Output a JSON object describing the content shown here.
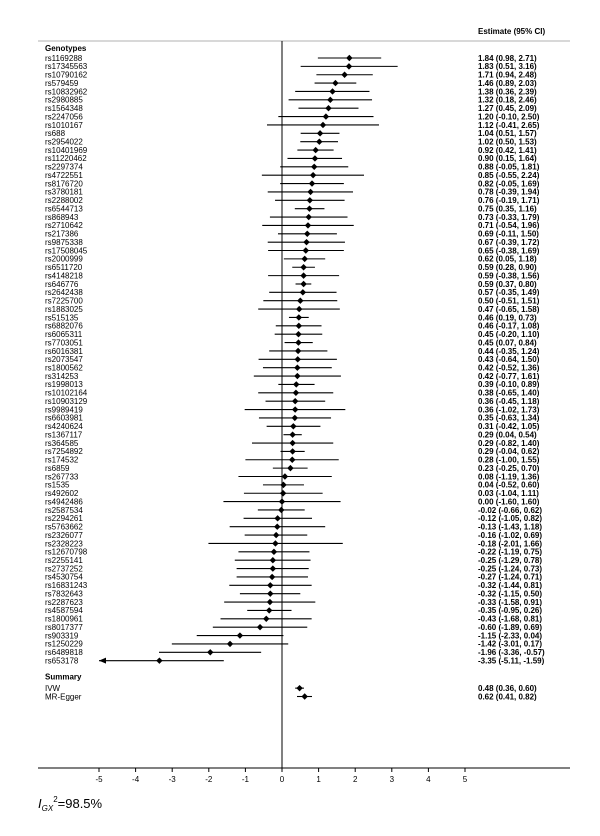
{
  "chart_data": {
    "type": "forest",
    "header_right": "Estimate (95% CI)",
    "section_genotypes": "Genotypes",
    "section_summary": "Summary",
    "xlim": [
      -5,
      5
    ],
    "xticks": [
      "-5",
      "-4",
      "-3",
      "-2",
      "-1",
      "0",
      "1",
      "2",
      "3",
      "4",
      "5"
    ],
    "grid": false,
    "rows": [
      {
        "label": "rs1169288",
        "est": 1.84,
        "lo": 0.98,
        "hi": 2.71,
        "text": "1.84 (0.98, 2.71)"
      },
      {
        "label": "rs17345563",
        "est": 1.83,
        "lo": 0.51,
        "hi": 3.16,
        "text": "1.83 (0.51, 3.16)"
      },
      {
        "label": "rs10790162",
        "est": 1.71,
        "lo": 0.94,
        "hi": 2.48,
        "text": "1.71 (0.94, 2.48)"
      },
      {
        "label": "rs579459",
        "est": 1.46,
        "lo": 0.89,
        "hi": 2.03,
        "text": "1.46 (0.89, 2.03)"
      },
      {
        "label": "rs10832962",
        "est": 1.38,
        "lo": 0.36,
        "hi": 2.39,
        "text": "1.38 (0.36, 2.39)"
      },
      {
        "label": "rs2980885",
        "est": 1.32,
        "lo": 0.18,
        "hi": 2.46,
        "text": "1.32 (0.18, 2.46)"
      },
      {
        "label": "rs1564348",
        "est": 1.27,
        "lo": 0.45,
        "hi": 2.09,
        "text": "1.27 (0.45, 2.09)"
      },
      {
        "label": "rs2247056",
        "est": 1.2,
        "lo": -0.1,
        "hi": 2.5,
        "text": "1.20 (-0.10, 2.50)"
      },
      {
        "label": "rs1010167",
        "est": 1.12,
        "lo": -0.41,
        "hi": 2.65,
        "text": "1.12 (-0.41, 2.65)"
      },
      {
        "label": "rs688",
        "est": 1.04,
        "lo": 0.51,
        "hi": 1.57,
        "text": "1.04 (0.51, 1.57)"
      },
      {
        "label": "rs2954022",
        "est": 1.02,
        "lo": 0.5,
        "hi": 1.53,
        "text": "1.02 (0.50, 1.53)"
      },
      {
        "label": "rs10401969",
        "est": 0.92,
        "lo": 0.42,
        "hi": 1.41,
        "text": "0.92 (0.42, 1.41)"
      },
      {
        "label": "rs11220462",
        "est": 0.9,
        "lo": 0.15,
        "hi": 1.64,
        "text": "0.90 (0.15, 1.64)"
      },
      {
        "label": "rs2297374",
        "est": 0.88,
        "lo": -0.05,
        "hi": 1.81,
        "text": "0.88 (-0.05, 1.81)"
      },
      {
        "label": "rs4722551",
        "est": 0.85,
        "lo": -0.55,
        "hi": 2.24,
        "text": "0.85 (-0.55, 2.24)"
      },
      {
        "label": "rs8176720",
        "est": 0.82,
        "lo": -0.05,
        "hi": 1.69,
        "text": "0.82 (-0.05, 1.69)"
      },
      {
        "label": "rs3780181",
        "est": 0.78,
        "lo": -0.39,
        "hi": 1.94,
        "text": "0.78 (-0.39, 1.94)"
      },
      {
        "label": "rs2288002",
        "est": 0.76,
        "lo": -0.19,
        "hi": 1.71,
        "text": "0.76 (-0.19, 1.71)"
      },
      {
        "label": "rs6544713",
        "est": 0.75,
        "lo": 0.35,
        "hi": 1.16,
        "text": "0.75 (0.35, 1.16)"
      },
      {
        "label": "rs868943",
        "est": 0.73,
        "lo": -0.33,
        "hi": 1.79,
        "text": "0.73 (-0.33, 1.79)"
      },
      {
        "label": "rs2710642",
        "est": 0.71,
        "lo": -0.54,
        "hi": 1.96,
        "text": "0.71 (-0.54, 1.96)"
      },
      {
        "label": "rs217386",
        "est": 0.69,
        "lo": -0.11,
        "hi": 1.5,
        "text": "0.69 (-0.11, 1.50)"
      },
      {
        "label": "rs9875338",
        "est": 0.67,
        "lo": -0.39,
        "hi": 1.72,
        "text": "0.67 (-0.39, 1.72)"
      },
      {
        "label": "rs17508045",
        "est": 0.65,
        "lo": -0.38,
        "hi": 1.69,
        "text": "0.65 (-0.38, 1.69)"
      },
      {
        "label": "rs2000999",
        "est": 0.62,
        "lo": 0.05,
        "hi": 1.18,
        "text": "0.62 (0.05, 1.18)"
      },
      {
        "label": "rs6511720",
        "est": 0.59,
        "lo": 0.28,
        "hi": 0.9,
        "text": "0.59 (0.28, 0.90)"
      },
      {
        "label": "rs4148218",
        "est": 0.59,
        "lo": -0.38,
        "hi": 1.56,
        "text": "0.59 (-0.38, 1.56)"
      },
      {
        "label": "rs646776",
        "est": 0.59,
        "lo": 0.37,
        "hi": 0.8,
        "text": "0.59 (0.37, 0.80)"
      },
      {
        "label": "rs2642438",
        "est": 0.57,
        "lo": -0.35,
        "hi": 1.49,
        "text": "0.57 (-0.35, 1.49)"
      },
      {
        "label": "rs7225700",
        "est": 0.5,
        "lo": -0.51,
        "hi": 1.51,
        "text": "0.50 (-0.51, 1.51)"
      },
      {
        "label": "rs1883025",
        "est": 0.47,
        "lo": -0.65,
        "hi": 1.58,
        "text": "0.47 (-0.65, 1.58)"
      },
      {
        "label": "rs515135",
        "est": 0.46,
        "lo": 0.19,
        "hi": 0.73,
        "text": "0.46 (0.19, 0.73)"
      },
      {
        "label": "rs6882076",
        "est": 0.46,
        "lo": -0.17,
        "hi": 1.08,
        "text": "0.46 (-0.17, 1.08)"
      },
      {
        "label": "rs6065311",
        "est": 0.45,
        "lo": -0.2,
        "hi": 1.1,
        "text": "0.45 (-0.20, 1.10)"
      },
      {
        "label": "rs7703051",
        "est": 0.45,
        "lo": 0.07,
        "hi": 0.84,
        "text": "0.45 (0.07, 0.84)"
      },
      {
        "label": "rs6016381",
        "est": 0.44,
        "lo": -0.35,
        "hi": 1.24,
        "text": "0.44 (-0.35, 1.24)"
      },
      {
        "label": "rs2073547",
        "est": 0.43,
        "lo": -0.64,
        "hi": 1.5,
        "text": "0.43 (-0.64, 1.50)"
      },
      {
        "label": "rs1800562",
        "est": 0.42,
        "lo": -0.52,
        "hi": 1.36,
        "text": "0.42 (-0.52, 1.36)"
      },
      {
        "label": "rs314253",
        "est": 0.42,
        "lo": -0.77,
        "hi": 1.61,
        "text": "0.42 (-0.77, 1.61)"
      },
      {
        "label": "rs1998013",
        "est": 0.39,
        "lo": -0.1,
        "hi": 0.89,
        "text": "0.39 (-0.10, 0.89)"
      },
      {
        "label": "rs10102164",
        "est": 0.38,
        "lo": -0.65,
        "hi": 1.4,
        "text": "0.38 (-0.65, 1.40)"
      },
      {
        "label": "rs10903129",
        "est": 0.36,
        "lo": -0.45,
        "hi": 1.18,
        "text": "0.36 (-0.45, 1.18)"
      },
      {
        "label": "rs9989419",
        "est": 0.36,
        "lo": -1.02,
        "hi": 1.73,
        "text": "0.36 (-1.02, 1.73)"
      },
      {
        "label": "rs6603981",
        "est": 0.35,
        "lo": -0.63,
        "hi": 1.34,
        "text": "0.35 (-0.63, 1.34)"
      },
      {
        "label": "rs4240624",
        "est": 0.31,
        "lo": -0.42,
        "hi": 1.05,
        "text": "0.31 (-0.42, 1.05)"
      },
      {
        "label": "rs1367117",
        "est": 0.29,
        "lo": 0.04,
        "hi": 0.54,
        "text": "0.29 (0.04, 0.54)"
      },
      {
        "label": "rs364585",
        "est": 0.29,
        "lo": -0.82,
        "hi": 1.4,
        "text": "0.29 (-0.82, 1.40)"
      },
      {
        "label": "rs7254892",
        "est": 0.29,
        "lo": -0.04,
        "hi": 0.62,
        "text": "0.29 (-0.04, 0.62)"
      },
      {
        "label": "rs174532",
        "est": 0.28,
        "lo": -1.0,
        "hi": 1.55,
        "text": "0.28 (-1.00, 1.55)"
      },
      {
        "label": "rs6859",
        "est": 0.23,
        "lo": -0.25,
        "hi": 0.7,
        "text": "0.23 (-0.25, 0.70)"
      },
      {
        "label": "rs267733",
        "est": 0.08,
        "lo": -1.19,
        "hi": 1.36,
        "text": "0.08 (-1.19, 1.36)"
      },
      {
        "label": "rs1535",
        "est": 0.04,
        "lo": -0.52,
        "hi": 0.6,
        "text": "0.04 (-0.52, 0.60)"
      },
      {
        "label": "rs492602",
        "est": 0.03,
        "lo": -1.04,
        "hi": 1.11,
        "text": "0.03 (-1.04, 1.11)"
      },
      {
        "label": "rs4942486",
        "est": 0.0,
        "lo": -1.6,
        "hi": 1.6,
        "text": "0.00 (-1.60, 1.60)"
      },
      {
        "label": "rs2587534",
        "est": -0.02,
        "lo": -0.66,
        "hi": 0.62,
        "text": "-0.02 (-0.66, 0.62)"
      },
      {
        "label": "rs2294261",
        "est": -0.12,
        "lo": -1.05,
        "hi": 0.82,
        "text": "-0.12 (-1.05, 0.82)"
      },
      {
        "label": "rs5763662",
        "est": -0.13,
        "lo": -1.43,
        "hi": 1.18,
        "text": "-0.13 (-1.43, 1.18)"
      },
      {
        "label": "rs2326077",
        "est": -0.16,
        "lo": -1.02,
        "hi": 0.69,
        "text": "-0.16 (-1.02, 0.69)"
      },
      {
        "label": "rs2328223",
        "est": -0.18,
        "lo": -2.01,
        "hi": 1.66,
        "text": "-0.18 (-2.01, 1.66)"
      },
      {
        "label": "rs12670798",
        "est": -0.22,
        "lo": -1.19,
        "hi": 0.75,
        "text": "-0.22 (-1.19, 0.75)"
      },
      {
        "label": "rs2255141",
        "est": -0.25,
        "lo": -1.29,
        "hi": 0.78,
        "text": "-0.25 (-1.29, 0.78)"
      },
      {
        "label": "rs2737252",
        "est": -0.25,
        "lo": -1.24,
        "hi": 0.73,
        "text": "-0.25 (-1.24, 0.73)"
      },
      {
        "label": "rs4530754",
        "est": -0.27,
        "lo": -1.24,
        "hi": 0.71,
        "text": "-0.27 (-1.24, 0.71)"
      },
      {
        "label": "rs16831243",
        "est": -0.32,
        "lo": -1.44,
        "hi": 0.81,
        "text": "-0.32 (-1.44, 0.81)"
      },
      {
        "label": "rs7832643",
        "est": -0.32,
        "lo": -1.15,
        "hi": 0.5,
        "text": "-0.32 (-1.15, 0.50)"
      },
      {
        "label": "rs2287623",
        "est": -0.33,
        "lo": -1.58,
        "hi": 0.91,
        "text": "-0.33 (-1.58, 0.91)"
      },
      {
        "label": "rs4587594",
        "est": -0.35,
        "lo": -0.95,
        "hi": 0.26,
        "text": "-0.35 (-0.95, 0.26)"
      },
      {
        "label": "rs1800961",
        "est": -0.43,
        "lo": -1.68,
        "hi": 0.81,
        "text": "-0.43 (-1.68, 0.81)"
      },
      {
        "label": "rs8017377",
        "est": -0.6,
        "lo": -1.89,
        "hi": 0.69,
        "text": "-0.60 (-1.89, 0.69)"
      },
      {
        "label": "rs903319",
        "est": -1.15,
        "lo": -2.33,
        "hi": 0.04,
        "text": "-1.15 (-2.33, 0.04)"
      },
      {
        "label": "rs1250229",
        "est": -1.42,
        "lo": -3.01,
        "hi": 0.17,
        "text": "-1.42 (-3.01, 0.17)"
      },
      {
        "label": "rs6489818",
        "est": -1.96,
        "lo": -3.36,
        "hi": -0.57,
        "text": "-1.96 (-3.36, -0.57)"
      },
      {
        "label": "rs653178",
        "est": -3.35,
        "lo": -5.11,
        "hi": -1.59,
        "text": "-3.35 (-5.11, -1.59)"
      }
    ],
    "summary": [
      {
        "label": "IVW",
        "est": 0.48,
        "lo": 0.36,
        "hi": 0.6,
        "text": "0.48 (0.36, 0.60)"
      },
      {
        "label": "MR-Egger",
        "est": 0.62,
        "lo": 0.41,
        "hi": 0.82,
        "text": "0.62 (0.41, 0.82)"
      }
    ],
    "footnote": {
      "prefix": "I",
      "sub": "GX",
      "sup": "2",
      "value": "=98.5%"
    }
  }
}
